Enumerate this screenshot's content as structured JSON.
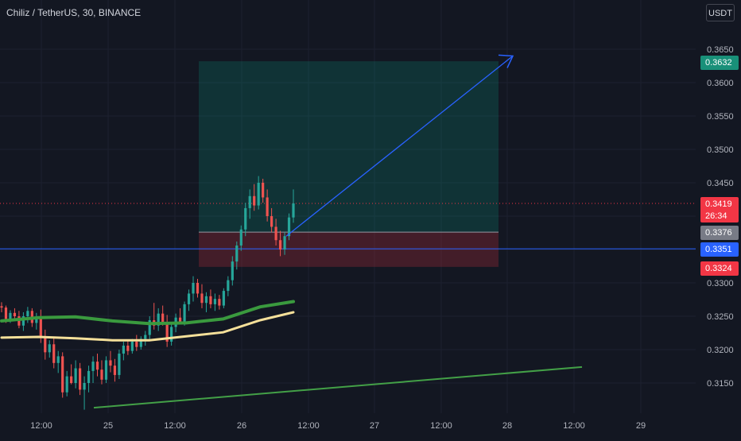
{
  "header": {
    "title": "Chiliz / TetherUS, 30, BINANCE",
    "currency": "USDT"
  },
  "colors": {
    "background": "#131722",
    "up": "#26a69a",
    "down": "#ef5350",
    "ma_green": "#3a9a3e",
    "ma_yellow": "#f5e09a",
    "trend": "#43a047",
    "projection": "#2962ff"
  },
  "badges": {
    "target": {
      "value": "0.3632",
      "color": "#199079"
    },
    "last": {
      "value": "0.3419",
      "countdown": "26:34",
      "color": "#f23645"
    },
    "entry": {
      "value": "0.3376",
      "color": "#787b86"
    },
    "line": {
      "value": "0.3351",
      "color": "#2962ff"
    },
    "stop": {
      "value": "0.3324",
      "color": "#f23645"
    }
  },
  "chart_data": {
    "type": "candlestick",
    "y_ticks": [
      "0.3650",
      "0.3600",
      "0.3550",
      "0.3500",
      "0.3450",
      "0.3400",
      "0.3350",
      "0.3300",
      "0.3250",
      "0.3200",
      "0.3150"
    ],
    "x_ticks": [
      "12:00",
      "25",
      "12:00",
      "26",
      "12:00",
      "27",
      "12:00",
      "28",
      "12:00",
      "29"
    ],
    "ylim": [
      0.31,
      0.368
    ],
    "candles": [
      [
        0.3265,
        0.3271,
        0.3256,
        0.3263
      ],
      [
        0.3263,
        0.3266,
        0.324,
        0.3246
      ],
      [
        0.3246,
        0.3259,
        0.324,
        0.3255
      ],
      [
        0.3255,
        0.3262,
        0.3244,
        0.325
      ],
      [
        0.325,
        0.3258,
        0.3232,
        0.3236
      ],
      [
        0.3236,
        0.3256,
        0.3228,
        0.325
      ],
      [
        0.325,
        0.3264,
        0.324,
        0.3258
      ],
      [
        0.3258,
        0.3262,
        0.3234,
        0.324
      ],
      [
        0.324,
        0.3255,
        0.323,
        0.3249
      ],
      [
        0.3249,
        0.326,
        0.321,
        0.3218
      ],
      [
        0.3218,
        0.323,
        0.3185,
        0.3196
      ],
      [
        0.3196,
        0.3214,
        0.3188,
        0.3208
      ],
      [
        0.3208,
        0.3218,
        0.3172,
        0.318
      ],
      [
        0.318,
        0.3198,
        0.3165,
        0.319
      ],
      [
        0.319,
        0.3196,
        0.3128,
        0.3136
      ],
      [
        0.3136,
        0.3168,
        0.313,
        0.316
      ],
      [
        0.316,
        0.3178,
        0.3148,
        0.315
      ],
      [
        0.315,
        0.3184,
        0.3142,
        0.3172
      ],
      [
        0.3172,
        0.318,
        0.3132,
        0.314
      ],
      [
        0.314,
        0.316,
        0.311,
        0.315
      ],
      [
        0.315,
        0.3176,
        0.3136,
        0.3168
      ],
      [
        0.3168,
        0.319,
        0.315,
        0.3182
      ],
      [
        0.3182,
        0.3194,
        0.316,
        0.317
      ],
      [
        0.317,
        0.3184,
        0.3148,
        0.3155
      ],
      [
        0.3155,
        0.319,
        0.315,
        0.3184
      ],
      [
        0.3184,
        0.3198,
        0.3166,
        0.3176
      ],
      [
        0.3176,
        0.3186,
        0.3152,
        0.3162
      ],
      [
        0.3162,
        0.32,
        0.3156,
        0.3194
      ],
      [
        0.3194,
        0.3212,
        0.3184,
        0.3206
      ],
      [
        0.3206,
        0.3214,
        0.3192,
        0.3198
      ],
      [
        0.3198,
        0.3216,
        0.3194,
        0.3212
      ],
      [
        0.3212,
        0.3222,
        0.3198,
        0.3204
      ],
      [
        0.3204,
        0.322,
        0.32,
        0.3216
      ],
      [
        0.3216,
        0.3228,
        0.3206,
        0.3222
      ],
      [
        0.3222,
        0.325,
        0.3216,
        0.3244
      ],
      [
        0.3244,
        0.327,
        0.323,
        0.3236
      ],
      [
        0.3236,
        0.3262,
        0.3228,
        0.3254
      ],
      [
        0.3254,
        0.3266,
        0.3236,
        0.324
      ],
      [
        0.324,
        0.3252,
        0.3204,
        0.3212
      ],
      [
        0.3212,
        0.324,
        0.3206,
        0.3234
      ],
      [
        0.3234,
        0.3254,
        0.3226,
        0.3248
      ],
      [
        0.3248,
        0.3262,
        0.3238,
        0.3242
      ],
      [
        0.3242,
        0.3272,
        0.3236,
        0.3268
      ],
      [
        0.3268,
        0.329,
        0.3258,
        0.3284
      ],
      [
        0.3284,
        0.331,
        0.3272,
        0.33
      ],
      [
        0.33,
        0.3306,
        0.3278,
        0.3284
      ],
      [
        0.3284,
        0.3298,
        0.3262,
        0.327
      ],
      [
        0.327,
        0.3286,
        0.3256,
        0.328
      ],
      [
        0.328,
        0.329,
        0.3262,
        0.3268
      ],
      [
        0.3268,
        0.3284,
        0.3258,
        0.3276
      ],
      [
        0.3276,
        0.3282,
        0.326,
        0.3266
      ],
      [
        0.3266,
        0.3292,
        0.3262,
        0.3288
      ],
      [
        0.3288,
        0.331,
        0.328,
        0.3304
      ],
      [
        0.3304,
        0.334,
        0.3296,
        0.3332
      ],
      [
        0.3332,
        0.3362,
        0.332,
        0.3356
      ],
      [
        0.3356,
        0.3386,
        0.3348,
        0.338
      ],
      [
        0.338,
        0.342,
        0.337,
        0.3412
      ],
      [
        0.3412,
        0.344,
        0.3396,
        0.343
      ],
      [
        0.343,
        0.3448,
        0.3408,
        0.3416
      ],
      [
        0.3416,
        0.346,
        0.341,
        0.345
      ],
      [
        0.345,
        0.3456,
        0.342,
        0.3428
      ],
      [
        0.3428,
        0.344,
        0.3392,
        0.34
      ],
      [
        0.34,
        0.3412,
        0.3376,
        0.3384
      ],
      [
        0.3384,
        0.3396,
        0.3356,
        0.3364
      ],
      [
        0.3364,
        0.3378,
        0.334,
        0.335
      ],
      [
        0.335,
        0.3376,
        0.3342,
        0.337
      ],
      [
        0.337,
        0.3404,
        0.3364,
        0.3398
      ],
      [
        0.3398,
        0.344,
        0.339,
        0.3419
      ]
    ],
    "ma_green": [
      [
        0,
        0.3243
      ],
      [
        10,
        0.3248
      ],
      [
        20,
        0.3249
      ],
      [
        30,
        0.3243
      ],
      [
        40,
        0.3239
      ],
      [
        50,
        0.324
      ],
      [
        60,
        0.3246
      ],
      [
        70,
        0.3264
      ],
      [
        79,
        0.3272
      ]
    ],
    "ma_yellow": [
      [
        0,
        0.3218
      ],
      [
        10,
        0.3219
      ],
      [
        20,
        0.3217
      ],
      [
        30,
        0.3214
      ],
      [
        40,
        0.3214
      ],
      [
        50,
        0.322
      ],
      [
        60,
        0.3226
      ],
      [
        70,
        0.3244
      ],
      [
        79,
        0.3256
      ]
    ],
    "trendline": [
      [
        0.3113,
        0.3113
      ],
      [
        0.3174,
        0.3174
      ]
    ],
    "horizontal_line": 0.3351,
    "last_price": 0.3419,
    "position": {
      "target": 0.3632,
      "entry": 0.3376,
      "stop": 0.3324
    },
    "projection_end": 0.364
  }
}
